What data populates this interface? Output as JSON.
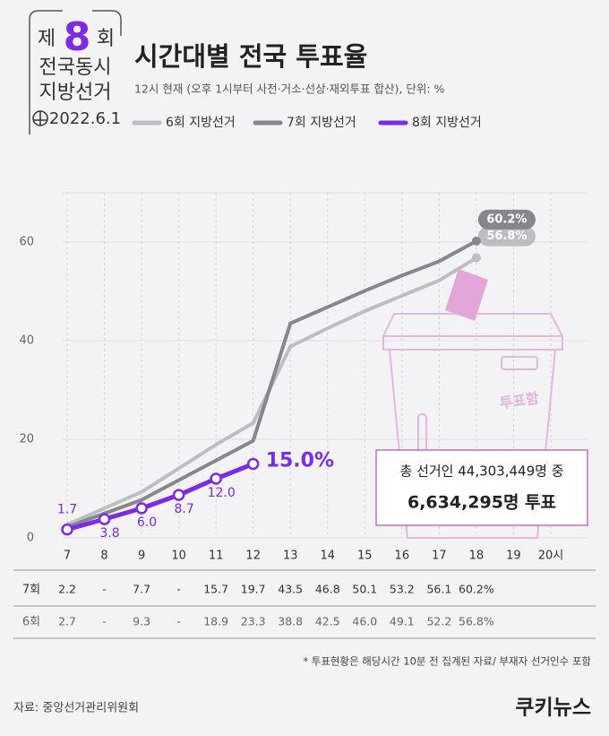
{
  "header": {
    "logo_prefix": "제",
    "logo_number": "8",
    "logo_suffix": "회",
    "logo_line1": "전국동시",
    "logo_line2": "지방선거",
    "logo_date": "2022.6.1"
  },
  "chart_data": {
    "type": "line",
    "title": "시간대별 전국 투표율",
    "subtitle": "12시 현재 (오후 1시부터 사전·거소·선상·재외투표 합산), 단위: %",
    "series": [
      {
        "name": "6회 지방선거",
        "color": "#bdbdc2",
        "x": [
          7,
          9,
          11,
          12,
          13,
          14,
          15,
          16,
          17,
          18
        ],
        "values": [
          2.7,
          9.3,
          18.9,
          23.3,
          38.8,
          42.5,
          46.0,
          49.1,
          52.2,
          56.8
        ],
        "end_label": "56.8%"
      },
      {
        "name": "7회 지방선거",
        "color": "#86868c",
        "x": [
          7,
          9,
          11,
          12,
          13,
          14,
          15,
          16,
          17,
          18
        ],
        "values": [
          2.2,
          7.7,
          15.7,
          19.7,
          43.5,
          46.8,
          50.1,
          53.2,
          56.1,
          60.2
        ],
        "end_label": "60.2%"
      },
      {
        "name": "8회 지방선거",
        "color": "#7d2ae8",
        "x": [
          7,
          8,
          9,
          10,
          11,
          12
        ],
        "values": [
          1.7,
          3.8,
          6.0,
          8.7,
          12.0,
          15.0
        ],
        "value_labels": [
          "1.7",
          "3.8",
          "6.0",
          "8.7",
          "12.0",
          "15.0%"
        ]
      }
    ],
    "xlim": [
      6,
      21
    ],
    "xticks": [
      7,
      8,
      9,
      10,
      11,
      12,
      13,
      14,
      15,
      16,
      17,
      18,
      19,
      {
        "value": 20,
        "label": "20시"
      }
    ],
    "ylim": [
      0,
      70
    ],
    "yticks": [
      0,
      20,
      40,
      60
    ],
    "grid": true,
    "legend": "top"
  },
  "table": {
    "rows": [
      {
        "label": "7회",
        "cells": [
          "2.2",
          "-",
          "7.7",
          "-",
          "15.7",
          "19.7",
          "43.5",
          "46.8",
          "50.1",
          "53.2",
          "56.1",
          "60.2%"
        ]
      },
      {
        "label": "6회",
        "cells": [
          "2.7",
          "-",
          "9.3",
          "-",
          "18.9",
          "23.3",
          "38.8",
          "42.5",
          "46.0",
          "49.1",
          "52.2",
          "56.8%"
        ]
      }
    ]
  },
  "annotation": {
    "illustration_label": "투표함",
    "line1": "총 선거인 44,303,449명 중",
    "line2": "6,634,295명 투표"
  },
  "footer": {
    "note": "* 투표현황은 해당시간 10분 전 집계된 자료/ 부재자 선거인수 포함",
    "source": "자료: 중앙선거관리위원회",
    "brand": "쿠키뉴스"
  }
}
